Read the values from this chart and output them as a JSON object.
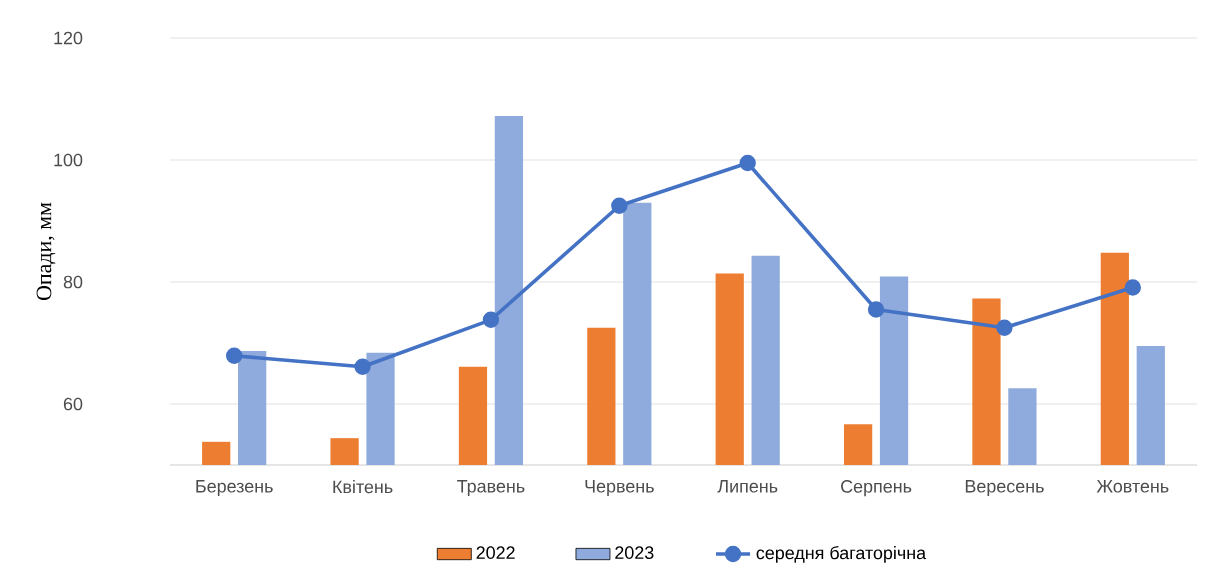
{
  "chart_data": {
    "type": "bar",
    "ylabel": "Опади, мм",
    "categories": [
      "Березень",
      "Квітень",
      "Травень",
      "Червень",
      "Липень",
      "Серпень",
      "Вересень",
      "Жовтень"
    ],
    "series": [
      {
        "name": "2022",
        "color": "#ed7d31",
        "values": [
          53.8,
          54.4,
          66.1,
          72.5,
          81.4,
          56.7,
          77.3,
          84.8
        ]
      },
      {
        "name": "2023",
        "color": "#8faadc",
        "values": [
          68.7,
          68.4,
          107.2,
          93.0,
          84.3,
          80.9,
          62.6,
          69.5
        ]
      },
      {
        "name": "середня багаторічна",
        "type": "line",
        "color": "#4472c4",
        "marker": "circle",
        "values": [
          67.9,
          66.1,
          73.8,
          92.5,
          99.5,
          75.5,
          72.5,
          79.1
        ]
      }
    ],
    "ylim": [
      50,
      120
    ],
    "yticks": [
      60,
      80,
      100,
      120
    ],
    "grid": "y",
    "legend": "bottom"
  }
}
